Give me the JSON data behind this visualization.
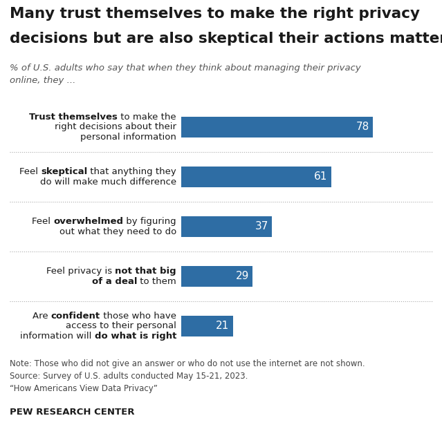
{
  "title_line1": "Many trust themselves to make the right privacy",
  "title_line2": "decisions but are also skeptical their actions matter",
  "subtitle": "% of U.S. adults who say that when they think about managing their privacy\nonline, they ...",
  "values": [
    78,
    61,
    37,
    29,
    21
  ],
  "bar_color": "#2e6da4",
  "label_lines": [
    [
      [
        "Trust themselves",
        true
      ],
      [
        " to make the",
        false
      ],
      [
        "\nright decisions about their",
        false
      ],
      [
        "\npersonal information",
        false
      ]
    ],
    [
      [
        "Feel ",
        false
      ],
      [
        "skeptical",
        true
      ],
      [
        " that anything they",
        false
      ],
      [
        "\ndo will make much difference",
        false
      ]
    ],
    [
      [
        "Feel ",
        false
      ],
      [
        "overwhelmed",
        true
      ],
      [
        " by figuring",
        false
      ],
      [
        "\nout what they need to do",
        false
      ]
    ],
    [
      [
        "Feel privacy is ",
        false
      ],
      [
        "not that big",
        true
      ],
      [
        "\nof a deal",
        true
      ],
      [
        " to them",
        false
      ]
    ],
    [
      [
        "Are ",
        false
      ],
      [
        "confident",
        true
      ],
      [
        " those who have",
        false
      ],
      [
        "\naccess to their personal",
        false
      ],
      [
        "\ninformation will ",
        false
      ],
      [
        "do what is right",
        true
      ]
    ]
  ],
  "note": "Note: Those who did not give an answer or who do not use the internet are not shown.\nSource: Survey of U.S. adults conducted May 15-21, 2023.\n“How Americans View Data Privacy”",
  "footer": "PEW RESEARCH CENTER",
  "bar_color_hex": "#2e6da4",
  "text_color": "#1a1a1a",
  "subtitle_color": "#555555",
  "note_color": "#444444",
  "separator_color": "#aaaaaa"
}
